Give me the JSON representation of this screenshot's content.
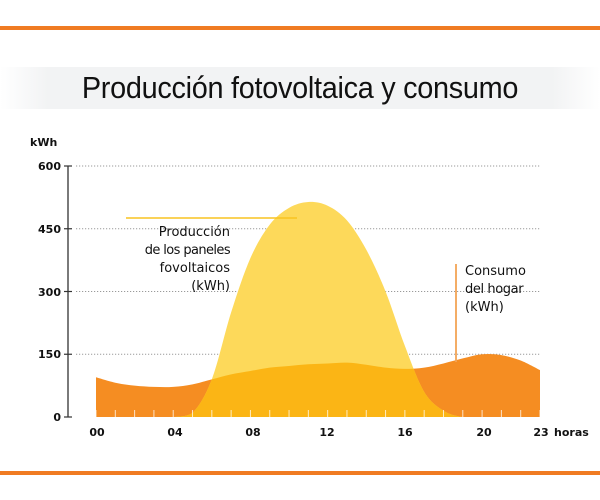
{
  "header": {
    "title": "Producción fotovoltaica y consumo"
  },
  "colors": {
    "rule": "#f07b22",
    "production_fill": "#fdd95a",
    "consumption_fill": "#f58d22",
    "overlap_fill": "#fbb515",
    "production_leader": "#f9c420",
    "consumption_leader": "#f3a455",
    "axis": "#333333",
    "grid": "#9a9a9a"
  },
  "axes": {
    "y_unit": "kWh",
    "y_ticks": [
      "600",
      "450",
      "300",
      "150",
      "0"
    ],
    "x_ticks": [
      "00",
      "04",
      "08",
      "12",
      "16",
      "20",
      "23"
    ],
    "x_unit": "horas"
  },
  "annotations": {
    "production": [
      "Producción",
      "de los paneles",
      "fovoltaicos",
      "(kWh)"
    ],
    "consumption": [
      "Consumo",
      "del hogar",
      "(kWh)"
    ]
  },
  "chart_data": {
    "type": "area",
    "title": "Producción fotovoltaica y consumo",
    "xlabel": "horas",
    "ylabel": "kWh",
    "ylim": [
      0,
      600
    ],
    "xlim": [
      0,
      23
    ],
    "grid": "horizontal dotted",
    "x": [
      0,
      1,
      2,
      3,
      4,
      5,
      6,
      7,
      8,
      9,
      10,
      11,
      12,
      13,
      14,
      15,
      16,
      17,
      18,
      19,
      20,
      21,
      22,
      23
    ],
    "series": [
      {
        "name": "Producción de los paneles fovoltaicos (kWh)",
        "values": [
          0,
          0,
          0,
          0,
          0,
          10,
          90,
          250,
          380,
          460,
          500,
          514,
          505,
          470,
          400,
          300,
          170,
          60,
          15,
          0,
          0,
          0,
          0,
          0
        ]
      },
      {
        "name": "Consumo del hogar (kWh)",
        "values": [
          95,
          82,
          75,
          72,
          72,
          78,
          90,
          102,
          110,
          118,
          122,
          126,
          128,
          130,
          125,
          118,
          115,
          118,
          128,
          140,
          150,
          148,
          135,
          112
        ]
      }
    ],
    "annotations": [
      "Producción de los paneles fovoltaicos (kWh)",
      "Consumo del hogar (kWh)"
    ]
  }
}
